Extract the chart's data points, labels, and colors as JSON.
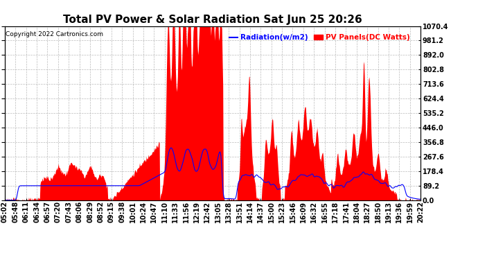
{
  "title": "Total PV Power & Solar Radiation Sat Jun 25 20:26",
  "copyright": "Copyright 2022 Cartronics.com",
  "legend_radiation": "Radiation(w/m2)",
  "legend_pv": "PV Panels(DC Watts)",
  "ylabel_right_ticks": [
    0.0,
    89.2,
    178.4,
    267.6,
    356.8,
    446.0,
    535.2,
    624.4,
    713.6,
    802.8,
    892.0,
    981.2,
    1070.4
  ],
  "ymax": 1070.4,
  "ymin": 0.0,
  "background_color": "#ffffff",
  "plot_bg_color": "#ffffff",
  "grid_color": "#aaaaaa",
  "pv_color": "#ff0000",
  "radiation_color": "#0000ff",
  "title_fontsize": 11,
  "tick_fontsize": 7,
  "x_tick_labels": [
    "05:02",
    "05:48",
    "06:11",
    "06:34",
    "06:57",
    "07:20",
    "07:43",
    "08:06",
    "08:29",
    "08:52",
    "09:15",
    "09:38",
    "10:01",
    "10:24",
    "10:47",
    "11:10",
    "11:33",
    "11:56",
    "12:19",
    "12:42",
    "13:05",
    "13:28",
    "13:51",
    "14:14",
    "14:37",
    "15:00",
    "15:23",
    "15:46",
    "16:09",
    "16:32",
    "16:55",
    "17:18",
    "17:41",
    "18:04",
    "18:27",
    "18:50",
    "19:13",
    "19:36",
    "19:59",
    "20:22"
  ],
  "n_points": 800
}
